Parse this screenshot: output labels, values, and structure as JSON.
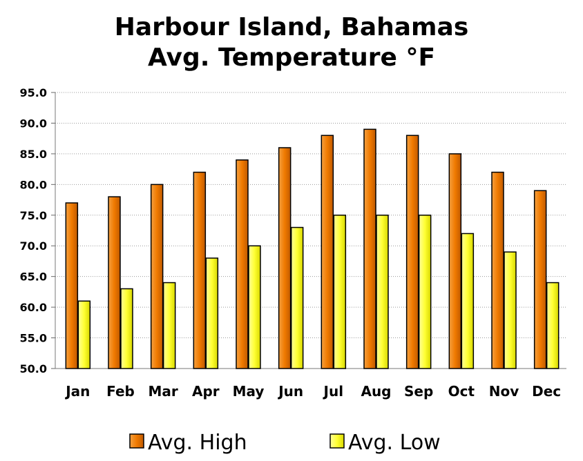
{
  "chart_data": {
    "type": "bar",
    "title_line1": "Harbour Island, Bahamas",
    "title_line2": "Avg. Temperature °F",
    "categories": [
      "Jan",
      "Feb",
      "Mar",
      "Apr",
      "May",
      "Jun",
      "Jul",
      "Aug",
      "Sep",
      "Oct",
      "Nov",
      "Dec"
    ],
    "series": [
      {
        "name": "Avg. High",
        "color": "#f07a00",
        "values": [
          77,
          78,
          80,
          82,
          84,
          86,
          88,
          89,
          88,
          85,
          82,
          79
        ]
      },
      {
        "name": "Avg. Low",
        "color": "#ffff33",
        "values": [
          61,
          63,
          64,
          68,
          70,
          73,
          75,
          75,
          75,
          72,
          69,
          64
        ]
      }
    ],
    "ylim": [
      50,
      95
    ],
    "yticks": [
      "50.0",
      "55.0",
      "60.0",
      "65.0",
      "70.0",
      "75.0",
      "80.0",
      "85.0",
      "90.0",
      "95.0"
    ],
    "grid": true,
    "legend_position": "bottom"
  }
}
